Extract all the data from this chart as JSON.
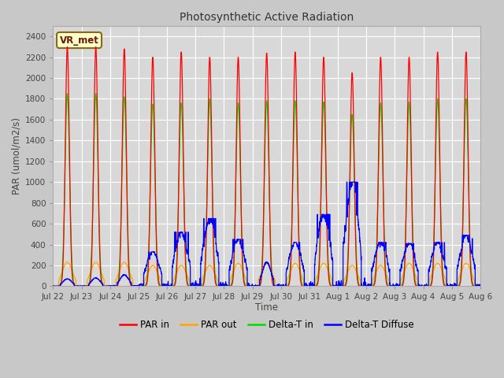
{
  "title": "Photosynthetic Active Radiation",
  "ylabel": "PAR (umol/m2/s)",
  "xlabel": "Time",
  "ylim": [
    0,
    2500
  ],
  "plot_bg_color": "#d8d8d8",
  "fig_bg_color": "#c8c8c8",
  "annotation_text": "VR_met",
  "annotation_bg": "#ffffcc",
  "annotation_border": "#8B4513",
  "x_tick_labels": [
    "Jul 22",
    "Jul 23",
    "Jul 24",
    "Jul 25",
    "Jul 26",
    "Jul 27",
    "Jul 28",
    "Jul 29",
    "Jul 30",
    "Jul 31",
    "Aug 1",
    "Aug 2",
    "Aug 3",
    "Aug 4",
    "Aug 5",
    "Aug 6"
  ],
  "colors": {
    "PAR_in": "#ff0000",
    "PAR_out": "#ffa500",
    "Delta_T_in": "#00dd00",
    "Delta_T_Diffuse": "#0000ff"
  },
  "legend": [
    "PAR in",
    "PAR out",
    "Delta-T in",
    "Delta-T Diffuse"
  ],
  "n_days": 15,
  "points_per_day": 288,
  "day_peaks": {
    "PAR_in": [
      2300,
      2300,
      2280,
      2200,
      2250,
      2200,
      2200,
      2240,
      2250,
      2200,
      2050,
      2200,
      2200,
      2250,
      2250
    ],
    "PAR_out": [
      230,
      230,
      230,
      200,
      200,
      200,
      220,
      220,
      220,
      220,
      200,
      200,
      220,
      220,
      220
    ],
    "Delta_T_in": [
      1850,
      1850,
      1820,
      1750,
      1760,
      1800,
      1760,
      1780,
      1780,
      1770,
      1650,
      1760,
      1770,
      1800,
      1800
    ],
    "Delta_T_Diffuse": [
      70,
      80,
      110,
      330,
      520,
      650,
      450,
      230,
      420,
      690,
      1000,
      420,
      410,
      420,
      490
    ]
  },
  "yticks": [
    0,
    200,
    400,
    600,
    800,
    1000,
    1200,
    1400,
    1600,
    1800,
    2000,
    2200,
    2400
  ]
}
